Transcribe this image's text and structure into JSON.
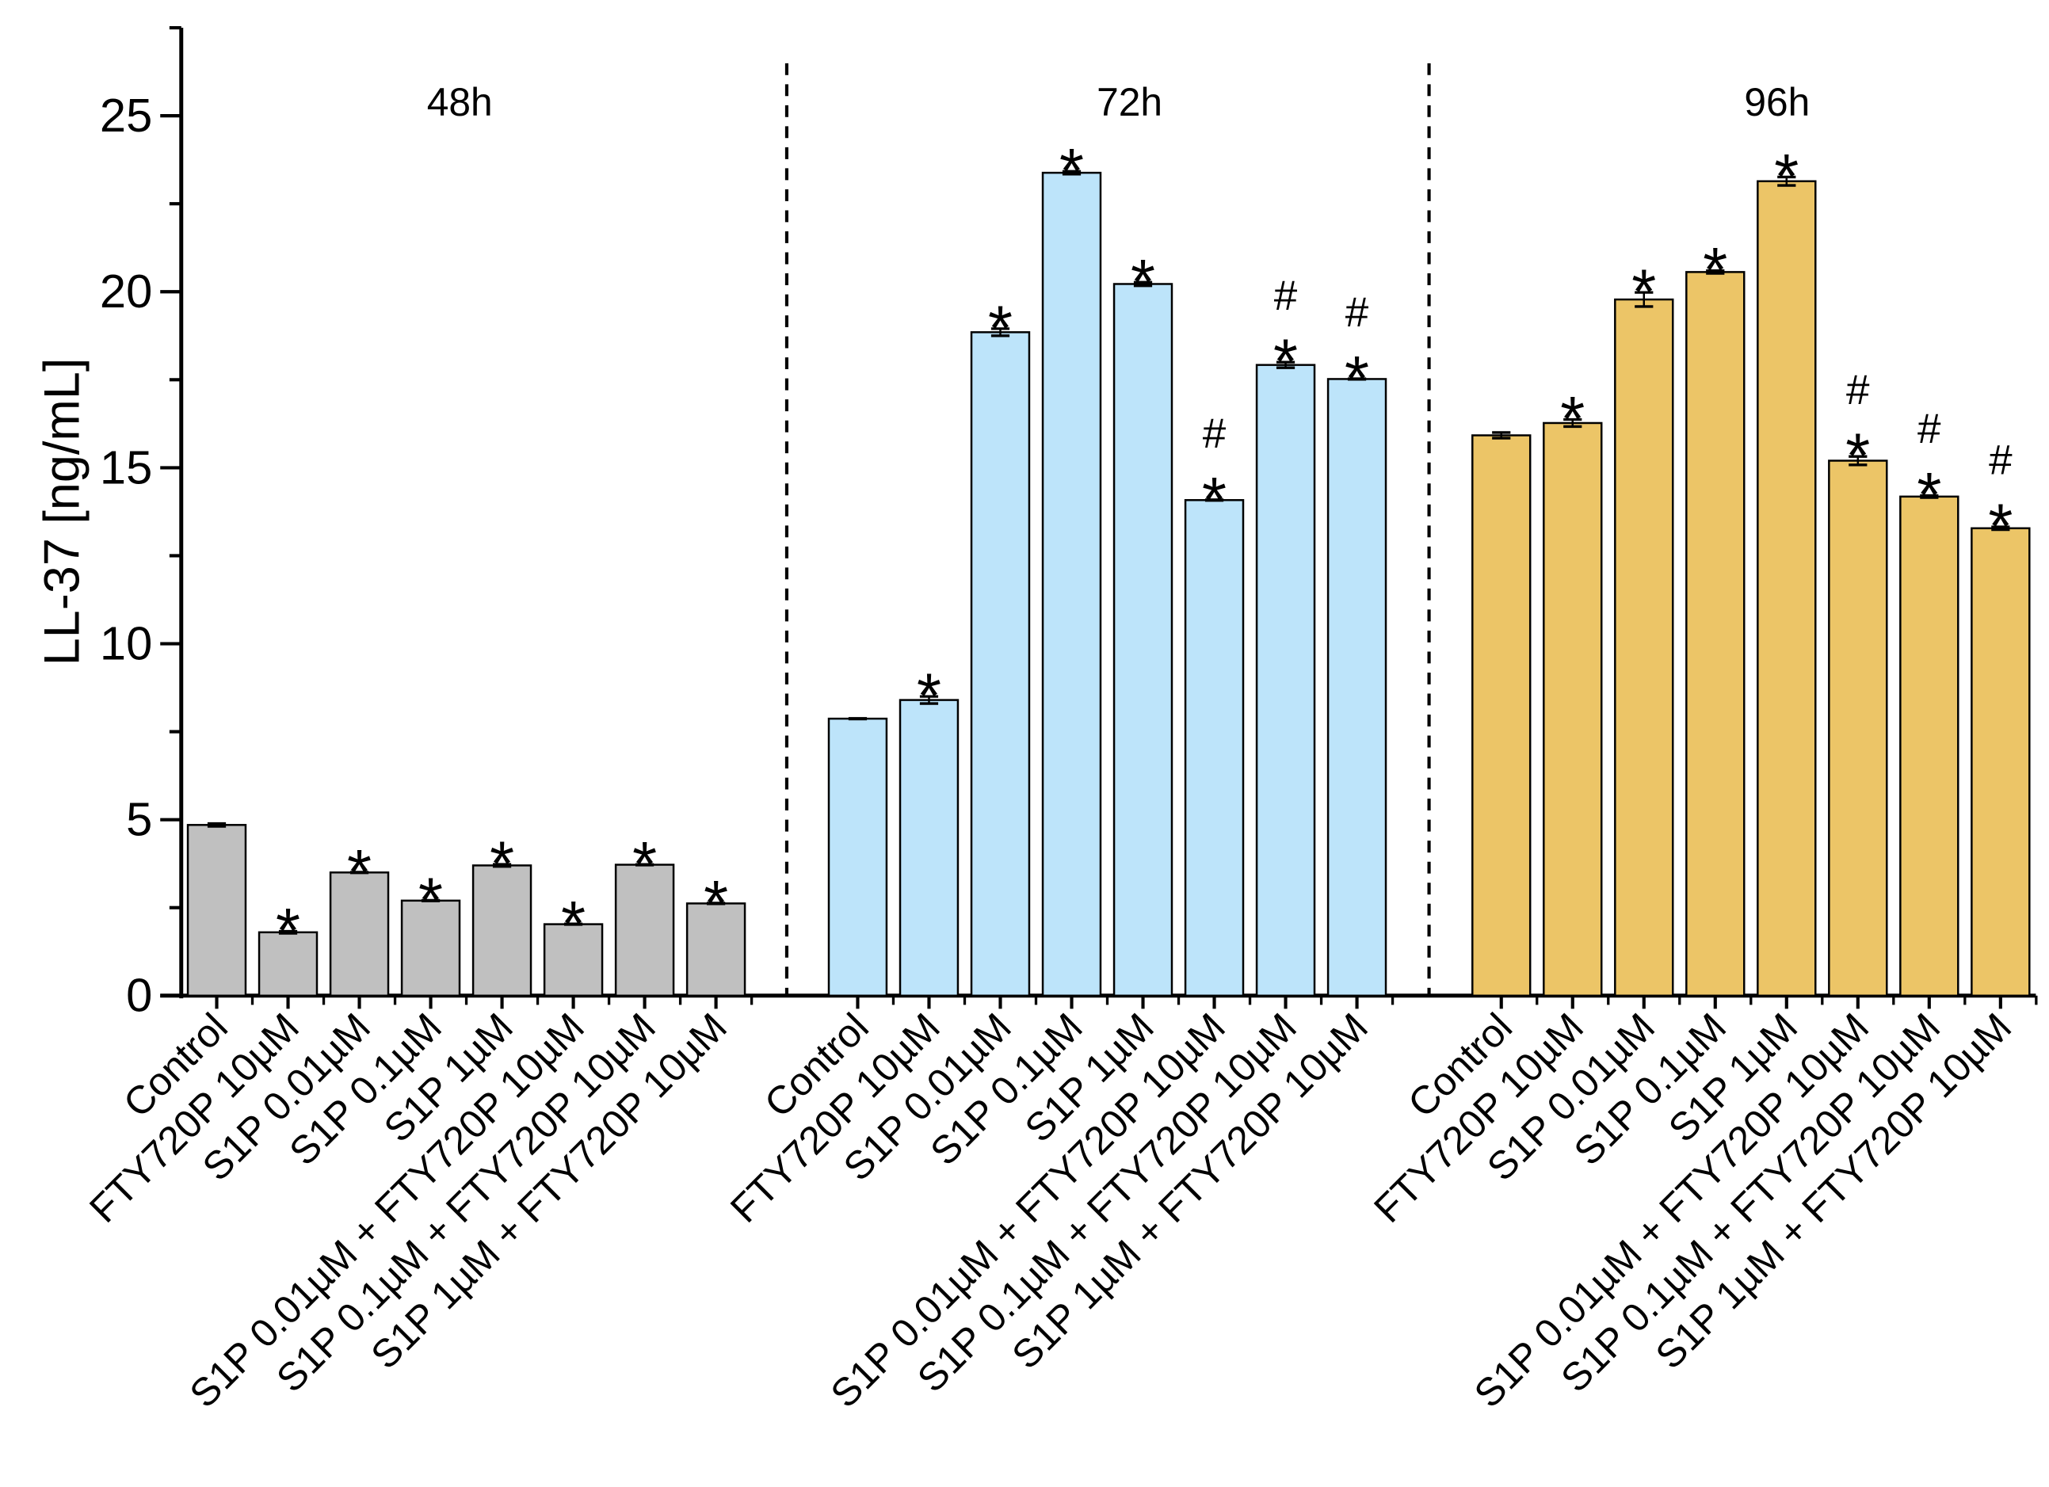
{
  "chart_data": {
    "type": "bar",
    "title": "",
    "xlabel": "",
    "ylabel": "LL-37 [ng/mL]",
    "ylim": [
      0,
      27.5
    ],
    "yticks": [
      0,
      5,
      10,
      15,
      20,
      25
    ],
    "categories": [
      "Control",
      "FTY720P 10µM",
      "S1P 0.01µM",
      "S1P 0.1µM",
      "S1P 1µM",
      "S1P 0.01µM + FTY720P 10µM",
      "S1P 0.1µM + FTY720P 10µM",
      "S1P 1µM + FTY720P 10µM"
    ],
    "groups": [
      {
        "name": "48h",
        "color": "#c0c0c0",
        "values": [
          4.85,
          1.8,
          3.5,
          2.7,
          3.7,
          2.03,
          3.72,
          2.62
        ],
        "errors": [
          0.04,
          0.03,
          0.0,
          0.0,
          0.03,
          0.0,
          0.0,
          0.0
        ],
        "marks": [
          "",
          "*",
          "*",
          "*",
          "*",
          "*",
          "*",
          "*"
        ]
      },
      {
        "name": "72h",
        "color": "#bde4fa",
        "values": [
          7.87,
          8.4,
          18.85,
          23.38,
          20.22,
          14.08,
          17.92,
          17.52
        ],
        "errors": [
          0.0,
          0.1,
          0.1,
          0.04,
          0.05,
          0.0,
          0.08,
          0.0
        ],
        "marks": [
          "",
          "*",
          "*",
          "*",
          "*",
          "#*",
          "#*",
          "#*"
        ]
      },
      {
        "name": "96h",
        "color": "#ecc567",
        "values": [
          15.92,
          16.27,
          19.78,
          20.56,
          23.14,
          15.2,
          14.18,
          13.28
        ],
        "errors": [
          0.08,
          0.1,
          0.2,
          0.04,
          0.12,
          0.12,
          0.03,
          0.04
        ],
        "marks": [
          "",
          "*",
          "*",
          "*",
          "*",
          "#*",
          "#*",
          "#*"
        ]
      }
    ],
    "grid": false,
    "legend": "none"
  }
}
